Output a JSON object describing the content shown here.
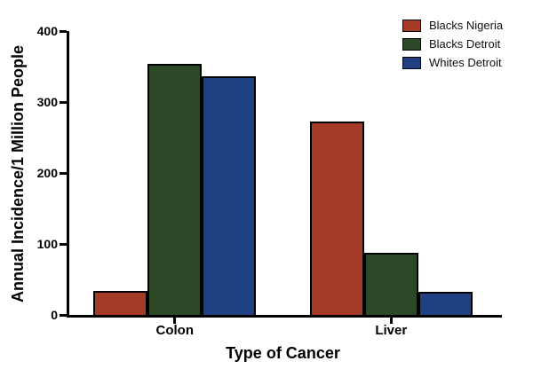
{
  "figure": {
    "background": "#ffffff",
    "axis_color": "#000000",
    "text_color": "#000000"
  },
  "chart_data": {
    "type": "bar",
    "title": "",
    "xlabel": "Type of Cancer",
    "ylabel": "Annual Incidence/1 Million People",
    "categories": [
      "Colon",
      "Liver"
    ],
    "series": [
      {
        "name": "Blacks Nigeria",
        "color": "#A43A28",
        "values": [
          34,
          273
        ]
      },
      {
        "name": "Blacks Detroit",
        "color": "#2C4826",
        "values": [
          354,
          87
        ]
      },
      {
        "name": "Whites Detroit",
        "color": "#1F4182",
        "values": [
          336,
          32
        ]
      }
    ],
    "ylim": [
      0,
      400
    ],
    "yticks": [
      0,
      100,
      200,
      300,
      400
    ],
    "grid": false,
    "legend_position": "top-right",
    "bar_border_color": "#000000"
  }
}
